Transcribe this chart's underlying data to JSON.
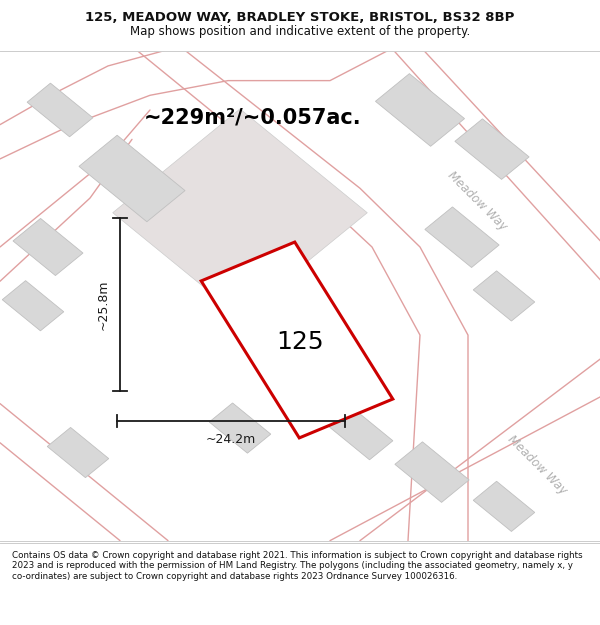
{
  "title_line1": "125, MEADOW WAY, BRADLEY STOKE, BRISTOL, BS32 8BP",
  "title_line2": "Map shows position and indicative extent of the property.",
  "footer_text": "Contains OS data © Crown copyright and database right 2021. This information is subject to Crown copyright and database rights 2023 and is reproduced with the permission of HM Land Registry. The polygons (including the associated geometry, namely x, y co-ordinates) are subject to Crown copyright and database rights 2023 Ordnance Survey 100026316.",
  "area_label": "~229m²/~0.057ac.",
  "width_label": "~24.2m",
  "height_label": "~25.8m",
  "plot_number": "125",
  "map_bg": "#f7f3f3",
  "plot_fill": "#ffffff",
  "plot_edge_color": "#cc0000",
  "building_fill": "#d8d8d8",
  "building_edge": "#c0c0c0",
  "road_fill": "#f0e8e8",
  "road_edge_color": "#e0a0a0",
  "street_label_color": "#b0b0b0",
  "dim_line_color": "#1a1a1a",
  "title_color": "#111111",
  "footer_color": "#111111",
  "title_fontsize": 9.5,
  "footer_fontsize": 6.3,
  "area_fontsize": 15,
  "plot_num_fontsize": 18,
  "street_fontsize": 8.5,
  "dim_fontsize": 9
}
